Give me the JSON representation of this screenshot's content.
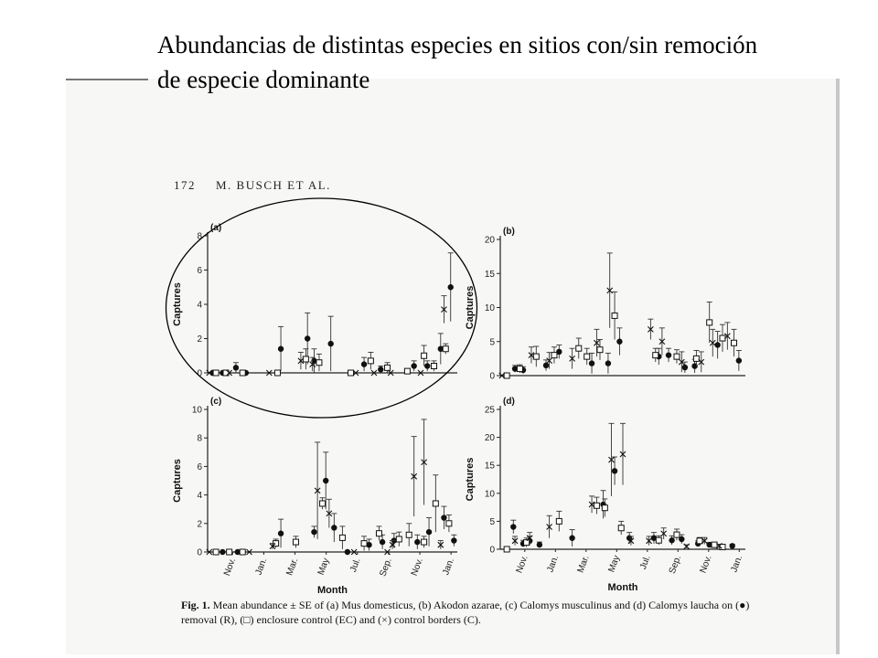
{
  "slide": {
    "title": "Abundancias de distintas especies en sitios con/sin remoción de especie dominante"
  },
  "page": {
    "page_number": "172",
    "authors": "M. BUSCH ET AL."
  },
  "caption": {
    "label": "Fig. 1.",
    "text": "Mean abundance ± SE of (a) Mus domesticus, (b) Akodon azarae, (c) Calomys musculinus and (d) Calomys laucha on (●) removal (R), (□) enclosure control (EC) and (×) control borders (C)."
  },
  "chart_data": [
    {
      "type": "scatter",
      "panel": "(a)",
      "xlabel": "Month",
      "ylabel": "Captures",
      "ylim": [
        0,
        8
      ],
      "yticks": [
        0,
        2,
        4,
        6,
        8
      ],
      "xticks": [
        "Nov.",
        "Jan.",
        "Mar.",
        "May",
        "Jul.",
        "Sep.",
        "Nov.",
        "Jan."
      ],
      "highlighted": true,
      "series": [
        {
          "name": "R",
          "marker": "circle",
          "points": [
            [
              0.3,
              0,
              0
            ],
            [
              0.9,
              0,
              0
            ],
            [
              1.7,
              0.3,
              0.3
            ],
            [
              2.3,
              0,
              0
            ],
            [
              4.4,
              1.4,
              1.3
            ],
            [
              6.0,
              2.0,
              1.5
            ],
            [
              6.4,
              0.7,
              0.7
            ],
            [
              7.4,
              1.7,
              1.6
            ],
            [
              9.4,
              0.5,
              0.4
            ],
            [
              10.4,
              0.2,
              0.2
            ],
            [
              12.4,
              0.4,
              0.3
            ],
            [
              13.2,
              0.4,
              0.3
            ],
            [
              14.0,
              1.4,
              0.9
            ],
            [
              14.6,
              5.0,
              2.0
            ]
          ]
        },
        {
          "name": "EC",
          "marker": "square",
          "points": [
            [
              0.5,
              0,
              0
            ],
            [
              1.1,
              0,
              0
            ],
            [
              2.1,
              0,
              0
            ],
            [
              4.2,
              0,
              0
            ],
            [
              5.9,
              0.8,
              0.6
            ],
            [
              6.7,
              0.6,
              0.5
            ],
            [
              8.6,
              0,
              0
            ],
            [
              9.8,
              0.7,
              0.5
            ],
            [
              10.8,
              0.3,
              0.3
            ],
            [
              12.0,
              0.1,
              0.1
            ],
            [
              13.0,
              1.0,
              0.6
            ],
            [
              13.6,
              0.4,
              0.3
            ],
            [
              14.3,
              1.4,
              0.3
            ]
          ]
        },
        {
          "name": "C",
          "marker": "cross",
          "points": [
            [
              0.1,
              0,
              0
            ],
            [
              1.3,
              0,
              0
            ],
            [
              3.7,
              0,
              0
            ],
            [
              5.6,
              0.7,
              0.5
            ],
            [
              6.3,
              0.5,
              0.4
            ],
            [
              8.9,
              0,
              0
            ],
            [
              10.0,
              0,
              0
            ],
            [
              11.0,
              0,
              0
            ],
            [
              12.8,
              0,
              0
            ],
            [
              14.2,
              3.7,
              0.8
            ]
          ]
        }
      ]
    },
    {
      "type": "scatter",
      "panel": "(b)",
      "xlabel": "Month",
      "ylabel": "Captures",
      "ylim": [
        0,
        20
      ],
      "yticks": [
        0,
        5,
        10,
        15,
        20
      ],
      "xticks": [
        "Nov.",
        "Jan.",
        "Mar.",
        "May",
        "Jul.",
        "Sep.",
        "Nov.",
        "Jan."
      ],
      "series": [
        {
          "name": "R",
          "marker": "circle",
          "points": [
            [
              0.9,
              1.0,
              0.5
            ],
            [
              1.4,
              0.8,
              0.5
            ],
            [
              2.8,
              1.5,
              0.8
            ],
            [
              3.6,
              3.5,
              1.0
            ],
            [
              5.6,
              1.8,
              1.5
            ],
            [
              6.6,
              1.8,
              1.5
            ],
            [
              7.3,
              5.0,
              2.0
            ],
            [
              9.7,
              2.8,
              1.2
            ],
            [
              10.3,
              3.0,
              1.0
            ],
            [
              11.3,
              1.2,
              0.8
            ],
            [
              11.9,
              1.4,
              1.0
            ],
            [
              13.3,
              4.5,
              2.0
            ],
            [
              14.6,
              2.2,
              1.5
            ]
          ]
        },
        {
          "name": "EC",
          "marker": "square",
          "points": [
            [
              0.4,
              0,
              0
            ],
            [
              1.2,
              1.0,
              0.6
            ],
            [
              2.2,
              2.8,
              1.5
            ],
            [
              3.3,
              3.0,
              1.2
            ],
            [
              4.8,
              4.0,
              1.5
            ],
            [
              5.3,
              2.8,
              1.2
            ],
            [
              6.1,
              3.8,
              1.5
            ],
            [
              7.0,
              8.8,
              3.5
            ],
            [
              9.5,
              3.0,
              1.0
            ],
            [
              10.8,
              2.8,
              1.0
            ],
            [
              12.0,
              2.5,
              1.2
            ],
            [
              12.8,
              7.8,
              3.0
            ],
            [
              13.6,
              5.5,
              2.0
            ],
            [
              14.3,
              4.8,
              2.0
            ]
          ]
        },
        {
          "name": "C",
          "marker": "cross",
          "points": [
            [
              0.1,
              0,
              0
            ],
            [
              1.9,
              3.0,
              1.2
            ],
            [
              3.0,
              2.2,
              1.2
            ],
            [
              4.4,
              2.5,
              1.5
            ],
            [
              5.9,
              4.8,
              2.0
            ],
            [
              6.7,
              12.5,
              5.5
            ],
            [
              9.2,
              6.8,
              1.5
            ],
            [
              9.9,
              5.0,
              2.0
            ],
            [
              11.1,
              2.0,
              1.5
            ],
            [
              12.3,
              2.0,
              1.5
            ],
            [
              13.0,
              4.8,
              2.0
            ],
            [
              13.9,
              5.8,
              2.0
            ]
          ]
        }
      ]
    },
    {
      "type": "scatter",
      "panel": "(c)",
      "xlabel": "Month",
      "ylabel": "Captures",
      "ylim": [
        0,
        10
      ],
      "yticks": [
        0,
        2,
        4,
        6,
        8,
        10
      ],
      "xticks": [
        "Nov.",
        "Jan.",
        "Mar.",
        "May",
        "Jul.",
        "Sep.",
        "Nov.",
        "Jan."
      ],
      "series": [
        {
          "name": "R",
          "marker": "circle",
          "points": [
            [
              0.9,
              0,
              0
            ],
            [
              1.8,
              0,
              0
            ],
            [
              4.4,
              1.3,
              1.0
            ],
            [
              6.4,
              1.4,
              0.4
            ],
            [
              7.1,
              5.0,
              2.0
            ],
            [
              7.6,
              1.7,
              1.0
            ],
            [
              8.4,
              0,
              0
            ],
            [
              9.7,
              0.5,
              0.4
            ],
            [
              10.5,
              0.7,
              0.5
            ],
            [
              11.2,
              0.8,
              0.5
            ],
            [
              12.6,
              0.7,
              0.5
            ],
            [
              13.3,
              1.4,
              1.0
            ],
            [
              14.2,
              2.4,
              0.8
            ],
            [
              14.8,
              0.8,
              0.4
            ]
          ]
        },
        {
          "name": "EC",
          "marker": "square",
          "points": [
            [
              0.5,
              0,
              0
            ],
            [
              1.3,
              0,
              0
            ],
            [
              2.1,
              0,
              0
            ],
            [
              4.1,
              0.6,
              0.3
            ],
            [
              5.3,
              0.7,
              0.4
            ],
            [
              6.9,
              3.4,
              0.4
            ],
            [
              8.1,
              1.0,
              0.8
            ],
            [
              9.4,
              0.6,
              0.5
            ],
            [
              10.3,
              1.3,
              0.5
            ],
            [
              11.5,
              0.9,
              0.5
            ],
            [
              12.1,
              1.2,
              0.8
            ],
            [
              13.0,
              0.7,
              0.4
            ],
            [
              13.7,
              3.4,
              2.0
            ],
            [
              14.5,
              2.0,
              0.6
            ]
          ]
        },
        {
          "name": "C",
          "marker": "cross",
          "points": [
            [
              0.1,
              0,
              0
            ],
            [
              2.5,
              0,
              0
            ],
            [
              3.9,
              0.4,
              0.2
            ],
            [
              6.6,
              4.3,
              3.4
            ],
            [
              7.3,
              2.7,
              1.0
            ],
            [
              8.8,
              0,
              0
            ],
            [
              10.8,
              0,
              0
            ],
            [
              11.1,
              0.5,
              0.3
            ],
            [
              12.4,
              5.3,
              2.8
            ],
            [
              13.0,
              6.3,
              3.0
            ],
            [
              14.0,
              0.5,
              0.3
            ]
          ]
        }
      ]
    },
    {
      "type": "scatter",
      "panel": "(d)",
      "xlabel": "Month",
      "ylabel": "Captures",
      "ylim": [
        0,
        25
      ],
      "yticks": [
        0,
        5,
        10,
        15,
        20,
        25
      ],
      "xticks": [
        "Nov.",
        "Jan.",
        "Mar.",
        "May",
        "Jul.",
        "Sep.",
        "Nov.",
        "Jan."
      ],
      "series": [
        {
          "name": "R",
          "marker": "circle",
          "points": [
            [
              0.8,
              4.0,
              1.2
            ],
            [
              1.4,
              1.0,
              0.6
            ],
            [
              1.8,
              1.5,
              0.8
            ],
            [
              2.4,
              0.8,
              0.5
            ],
            [
              4.4,
              2.0,
              1.5
            ],
            [
              6.3,
              8.0,
              2.5
            ],
            [
              7.0,
              14.0,
              2.5
            ],
            [
              7.9,
              2.0,
              1.0
            ],
            [
              9.4,
              2.0,
              1.0
            ],
            [
              10.5,
              1.6,
              0.8
            ],
            [
              11.1,
              1.8,
              0.8
            ],
            [
              12.1,
              1.0,
              0.5
            ],
            [
              12.8,
              0.8,
              0.4
            ],
            [
              14.2,
              0.6,
              0.3
            ]
          ]
        },
        {
          "name": "EC",
          "marker": "square",
          "points": [
            [
              0.4,
              0,
              0
            ],
            [
              1.6,
              1.2,
              0.8
            ],
            [
              3.6,
              5.0,
              1.8
            ],
            [
              5.9,
              7.8,
              1.5
            ],
            [
              6.4,
              7.4,
              1.6
            ],
            [
              7.4,
              3.8,
              1.2
            ],
            [
              9.7,
              1.6,
              0.8
            ],
            [
              10.8,
              2.6,
              1.0
            ],
            [
              12.2,
              1.5,
              0.6
            ],
            [
              13.1,
              0.8,
              0.4
            ],
            [
              13.6,
              0.4,
              0.2
            ]
          ]
        },
        {
          "name": "C",
          "marker": "cross",
          "points": [
            [
              0.9,
              1.5,
              0.8
            ],
            [
              1.8,
              2.0,
              1.0
            ],
            [
              3.0,
              4.0,
              2.0
            ],
            [
              5.6,
              8.0,
              1.5
            ],
            [
              6.8,
              16.0,
              6.5
            ],
            [
              7.5,
              17.0,
              5.5
            ],
            [
              8.0,
              1.5,
              0.8
            ],
            [
              9.1,
              1.5,
              0.8
            ],
            [
              10.0,
              2.8,
              1.0
            ],
            [
              11.4,
              0.5,
              0.3
            ],
            [
              12.5,
              1.5,
              0.6
            ],
            [
              13.4,
              0.6,
              0.3
            ]
          ]
        }
      ]
    }
  ]
}
